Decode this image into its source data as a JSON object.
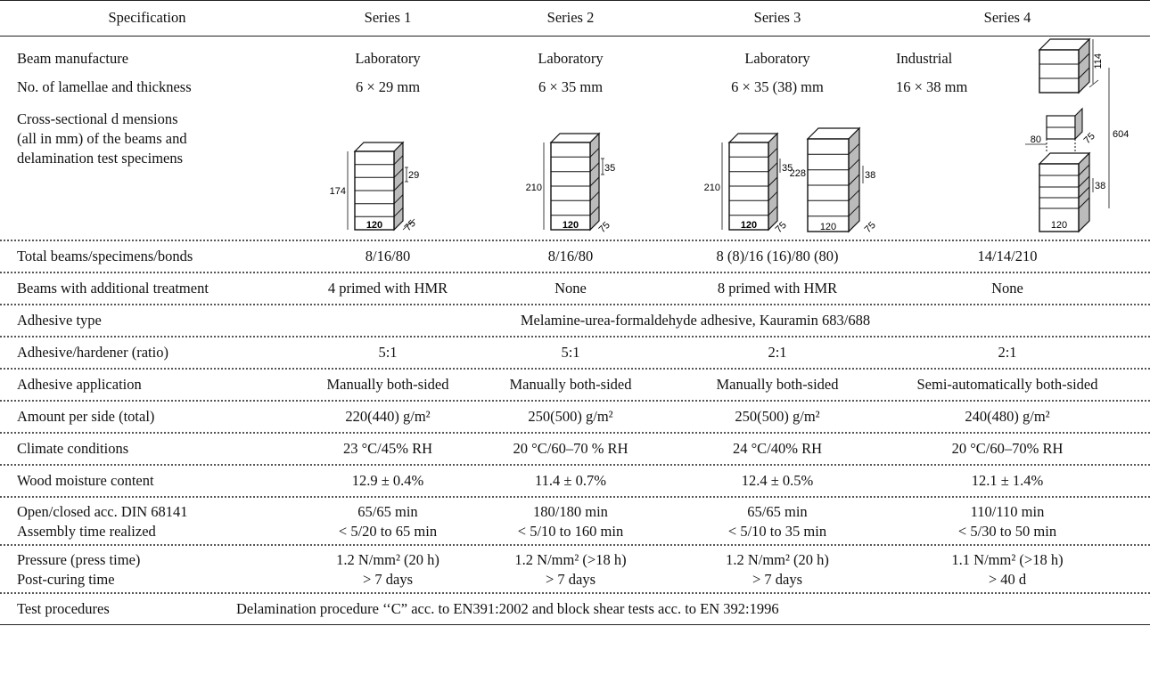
{
  "header": {
    "specification": "Specification",
    "series": [
      "Series 1",
      "Series 2",
      "Series 3",
      "Series 4"
    ]
  },
  "rows": {
    "manufacture": {
      "label": "Beam manufacture",
      "values": [
        "Laboratory",
        "Laboratory",
        "Laboratory",
        "Industrial"
      ]
    },
    "lamellae": {
      "label": "No. of lamellae and thickness",
      "values": [
        "6 × 29 mm",
        "6 × 35 mm",
        "6 × 35 (38) mm",
        "16 × 38 mm"
      ]
    },
    "cross_section": {
      "label_lines": [
        "Cross-sectional d mensions",
        "(all in mm) of the beams and",
        "delamination test specimens"
      ]
    },
    "total": {
      "label": "Total beams/specimens/bonds",
      "values": [
        "8/16/80",
        "8/16/80",
        "8 (8)/16 (16)/80 (80)",
        "14/14/210"
      ]
    },
    "treatment": {
      "label": "Beams with additional treatment",
      "values": [
        "4 primed with HMR",
        "None",
        "8 primed with HMR",
        "None"
      ]
    },
    "adhesive_type": {
      "label": "Adhesive type",
      "value": "Melamine-urea-formaldehyde adhesive, Kauramin 683/688"
    },
    "ratio": {
      "label": "Adhesive/hardener (ratio)",
      "values": [
        "5:1",
        "5:1",
        "2:1",
        "2:1"
      ]
    },
    "application": {
      "label": "Adhesive application",
      "values": [
        "Manually both-sided",
        "Manually both-sided",
        "Manually both-sided",
        "Semi-automatically both-sided"
      ]
    },
    "amount": {
      "label": "Amount per side (total)",
      "values": [
        "220(440) g/m²",
        "250(500) g/m²",
        "250(500) g/m²",
        "240(480) g/m²"
      ]
    },
    "climate": {
      "label": "Climate conditions",
      "values": [
        "23 °C/45% RH",
        "20 °C/60–70 % RH",
        "24 °C/40% RH",
        "20 °C/60–70% RH"
      ]
    },
    "moisture": {
      "label": "Wood moisture content",
      "values": [
        "12.9 ± 0.4%",
        "11.4 ± 0.7%",
        "12.4 ± 0.5%",
        "12.1 ± 1.4%"
      ]
    },
    "assembly": {
      "label_lines": [
        "Open/closed acc. DIN 68141",
        "Assembly time realized"
      ],
      "line1": [
        "65/65 min",
        "180/180 min",
        "65/65 min",
        "110/110 min"
      ],
      "line2": [
        "< 5/20 to 65 min",
        "< 5/10 to 160 min",
        "< 5/10 to 35 min",
        "< 5/30 to 50 min"
      ]
    },
    "pressure": {
      "label_lines": [
        "Pressure (press time)",
        "Post-curing time"
      ],
      "line1": [
        "1.2 N/mm² (20 h)",
        "1.2 N/mm² (>18 h)",
        "1.2 N/mm² (20 h)",
        "1.1 N/mm² (>18 h)"
      ],
      "line2": [
        "> 7 days",
        "> 7 days",
        "> 7 days",
        "> 40 d"
      ]
    },
    "test": {
      "label": "Test procedures",
      "value": "Delamination procedure ‘‘C” acc. to EN391:2002 and block shear tests acc. to EN 392:1996"
    }
  },
  "sketches": {
    "s1": {
      "height": "174",
      "thickness": "29",
      "width": "120",
      "depth": "75"
    },
    "s2": {
      "height": "210",
      "thickness": "35",
      "width": "120",
      "depth": "75"
    },
    "s3a": {
      "height": "210",
      "thickness": "35",
      "width": "120",
      "depth": "75"
    },
    "s3b": {
      "height": "228",
      "thickness": "38",
      "width": "120",
      "depth": "75"
    },
    "s4": {
      "top": "114",
      "total": "604",
      "gap": "80",
      "depth": "75",
      "thickness": "38",
      "width": "120"
    }
  }
}
